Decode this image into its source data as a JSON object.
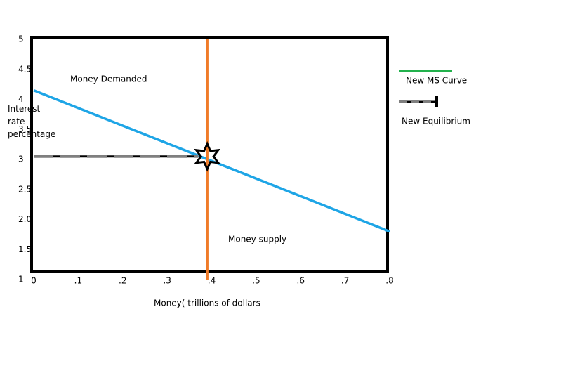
{
  "chart_data": {
    "type": "line",
    "x_label": "Money( trillions of dollars",
    "y_label": "Interest rate percentage",
    "xlim": [
      0,
      0.8
    ],
    "ylim": [
      1,
      5
    ],
    "xticks": [
      0,
      {
        "value": 0.1,
        "label": ".1"
      },
      {
        "value": 0.2,
        "label": ".2"
      },
      {
        "value": 0.3,
        "label": ".3"
      },
      {
        "value": 0.4,
        "label": ".4"
      },
      {
        "value": 0.5,
        "label": ".5"
      },
      {
        "value": 0.6,
        "label": ".6"
      },
      {
        "value": 0.7,
        "label": ".7"
      },
      {
        "value": 0.8,
        "label": ".8"
      }
    ],
    "yticks": [
      5,
      4.5,
      4,
      3.5,
      3,
      2.5,
      {
        "value": 2,
        "label": "2.0"
      },
      1.5,
      1
    ],
    "series": [
      {
        "name": "Money Demanded",
        "color": "#1ea5e6",
        "x": [
          0,
          0.8
        ],
        "values": [
          4.15,
          1.8
        ]
      },
      {
        "name": "Money supply",
        "color": "#f07b28",
        "x": [
          0.39,
          0.39
        ],
        "values": [
          1,
          5
        ]
      },
      {
        "name": "New Equilibrium",
        "color": "#7f7f7f",
        "x": [
          0,
          0.37
        ],
        "values": [
          3.05,
          3.05
        ],
        "dashed": true
      }
    ],
    "legend": [
      {
        "name": "New MS Curve",
        "color": "#22b14c"
      },
      {
        "name": "New Equilibrium",
        "color": "#7f7f7f"
      }
    ]
  }
}
